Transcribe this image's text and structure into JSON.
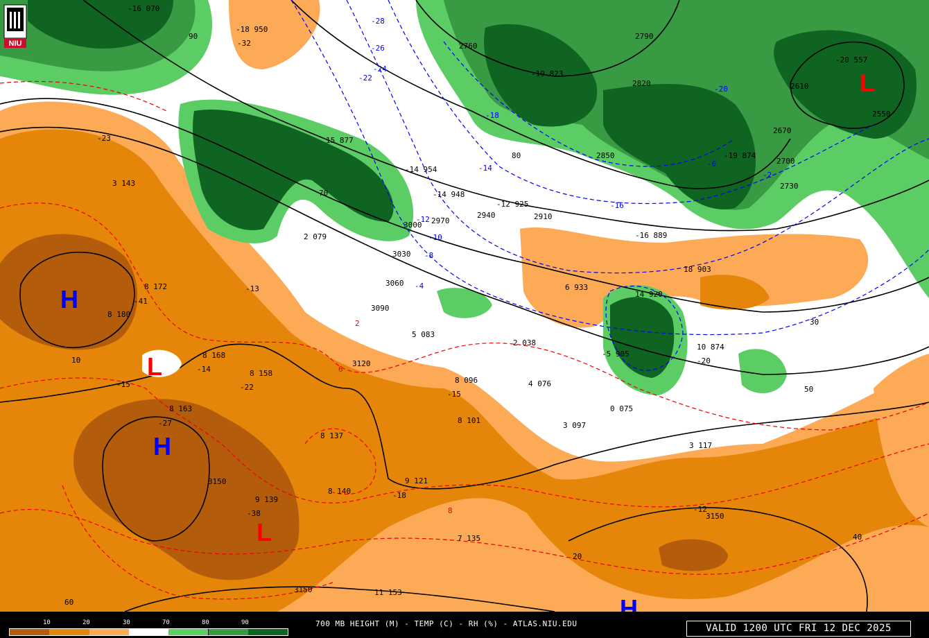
{
  "title": "700 MB HEIGHT (M) - TEMP (C) - RH (%) - ATLAS.NIU.EDU",
  "valid_time": "VALID 1200 UTC FRI 12 DEC 2025",
  "logo_text": "NIU",
  "legend": {
    "labels": [
      "10",
      "20",
      "30",
      "70",
      "80",
      "90"
    ],
    "colors": [
      "#b35c0b",
      "#e5860a",
      "#fcaa55",
      "#ffffff",
      "#5ccc64",
      "#389a42",
      "#0f6422"
    ]
  },
  "colors": {
    "temp_contour": "#e00000",
    "cold_temp_contour": "#0000ff",
    "height_contour": "#000000",
    "high_marker": "#0000ff",
    "low_marker": "#ff0000"
  },
  "pressure_centers": [
    {
      "type": "H",
      "label": "H"
    },
    {
      "type": "H",
      "label": "H"
    },
    {
      "type": "H",
      "label": "H"
    },
    {
      "type": "L",
      "label": "L"
    },
    {
      "type": "L",
      "label": "L"
    },
    {
      "type": "L",
      "label": "L"
    }
  ],
  "height_labels": [
    "2760",
    "2790",
    "2820",
    "2850",
    "2910",
    "2940",
    "2970",
    "3000",
    "3030",
    "3060",
    "3090",
    "3120",
    "3150",
    "3150",
    "3150",
    "2670",
    "2700",
    "2730",
    "2610",
    "2550"
  ],
  "temp_labels": [
    "-28",
    "-26",
    "-24",
    "-22",
    "-20",
    "-18",
    "-16",
    "-14",
    "-12",
    "-10",
    "-8",
    "-6",
    "-4",
    "-2",
    "2",
    "6",
    "8",
    "-41",
    "-27",
    "-38",
    "-32",
    "-23",
    "-13",
    "-15",
    "-22",
    "-14",
    "-20",
    "-12",
    "-18",
    "-15"
  ],
  "station_labels": [
    "-16 070",
    "-18 950",
    "3 143",
    "8 172",
    "8 180",
    "8 168",
    "8 158",
    "8 163",
    "8 137",
    "8 140",
    "9 139",
    "-14 954",
    "-14 948",
    "-12 925",
    "2 079",
    "5 083",
    "2 038",
    "4 076",
    "8 096",
    "8 101",
    "6 933",
    "14 920",
    "10 874",
    "18 903",
    "9 121",
    "7 135",
    "11 153",
    "3 097",
    "3 117",
    "-19 823",
    "-16 889",
    "-19 874",
    "-20 557",
    "0 075",
    "-5 905",
    "15 877"
  ],
  "rh_labels": [
    "90",
    "80",
    "70",
    "60",
    "50",
    "40",
    "30",
    "20",
    "10"
  ]
}
